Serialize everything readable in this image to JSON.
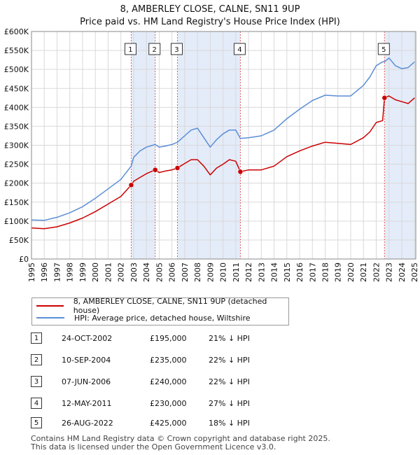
{
  "title": "8, AMBERLEY CLOSE, CALNE, SN11 9UP",
  "subtitle": "Price paid vs. HM Land Registry's House Price Index (HPI)",
  "colors": {
    "property": "#cc0000",
    "hpi": "#5b8ed6",
    "shade": "#e4ecf9",
    "marker_line": "#e06060"
  },
  "legend": {
    "property": "8, AMBERLEY CLOSE, CALNE, SN11 9UP (detached house)",
    "hpi": "HPI: Average price, detached house, Wiltshire"
  },
  "transactions": [
    {
      "num": "1",
      "date": "24-OCT-2002",
      "price": "£195,000",
      "hpi": "21% ↓ HPI"
    },
    {
      "num": "2",
      "date": "10-SEP-2004",
      "price": "£235,000",
      "hpi": "22% ↓ HPI"
    },
    {
      "num": "3",
      "date": "07-JUN-2006",
      "price": "£240,000",
      "hpi": "22% ↓ HPI"
    },
    {
      "num": "4",
      "date": "12-MAY-2011",
      "price": "£230,000",
      "hpi": "27% ↓ HPI"
    },
    {
      "num": "5",
      "date": "26-AUG-2022",
      "price": "£425,000",
      "hpi": "18% ↓ HPI"
    }
  ],
  "footer": {
    "line1": "Contains HM Land Registry data © Crown copyright and database right 2025.",
    "line2": "This data is licensed under the Open Government Licence v3.0."
  },
  "chart_data": {
    "type": "line",
    "xlim": [
      1995,
      2025.1
    ],
    "ylim": [
      0,
      600000
    ],
    "x_ticks": [
      1995,
      1996,
      1997,
      1998,
      1999,
      2000,
      2001,
      2002,
      2003,
      2004,
      2005,
      2006,
      2007,
      2008,
      2009,
      2010,
      2011,
      2012,
      2013,
      2014,
      2015,
      2016,
      2017,
      2018,
      2019,
      2020,
      2021,
      2022,
      2023,
      2024,
      2025
    ],
    "y_ticks": [
      {
        "v": 0,
        "label": "£0"
      },
      {
        "v": 50000,
        "label": "£50K"
      },
      {
        "v": 100000,
        "label": "£100K"
      },
      {
        "v": 150000,
        "label": "£150K"
      },
      {
        "v": 200000,
        "label": "£200K"
      },
      {
        "v": 250000,
        "label": "£250K"
      },
      {
        "v": 300000,
        "label": "£300K"
      },
      {
        "v": 350000,
        "label": "£350K"
      },
      {
        "v": 400000,
        "label": "£400K"
      },
      {
        "v": 450000,
        "label": "£450K"
      },
      {
        "v": 500000,
        "label": "£500K"
      },
      {
        "v": 550000,
        "label": "£550K"
      },
      {
        "v": 600000,
        "label": "£600K"
      }
    ],
    "shaded_periods": [
      [
        2002.81,
        2004.69
      ],
      [
        2006.43,
        2011.36
      ],
      [
        2022.65,
        2025.1
      ]
    ],
    "sale_markers": [
      {
        "num": "1",
        "x": 2002.81,
        "y": 195000
      },
      {
        "num": "2",
        "x": 2004.69,
        "y": 235000
      },
      {
        "num": "3",
        "x": 2006.43,
        "y": 240000
      },
      {
        "num": "4",
        "x": 2011.36,
        "y": 230000
      },
      {
        "num": "5",
        "x": 2022.65,
        "y": 425000
      }
    ],
    "series": [
      {
        "name": "8, AMBERLEY CLOSE, CALNE, SN11 9UP (detached house)",
        "x": [
          1995,
          1996,
          1997,
          1998,
          1999,
          2000,
          2001,
          2002,
          2002.81,
          2003,
          2003.5,
          2004,
          2004.69,
          2005,
          2005.5,
          2006,
          2006.43,
          2007,
          2007.5,
          2008,
          2008.5,
          2009,
          2009.5,
          2010,
          2010.5,
          2011,
          2011.36,
          2012,
          2013,
          2014,
          2015,
          2016,
          2017,
          2018,
          2019,
          2020,
          2021,
          2021.5,
          2022,
          2022.5,
          2022.65,
          2023,
          2023.5,
          2024,
          2024.5,
          2025
        ],
        "values": [
          82000,
          80000,
          85000,
          95000,
          108000,
          125000,
          145000,
          165000,
          195000,
          205000,
          215000,
          225000,
          235000,
          228000,
          232000,
          235000,
          240000,
          252000,
          262000,
          262000,
          245000,
          222000,
          240000,
          250000,
          262000,
          258000,
          230000,
          235000,
          235000,
          245000,
          270000,
          285000,
          298000,
          308000,
          305000,
          302000,
          320000,
          335000,
          360000,
          365000,
          425000,
          430000,
          420000,
          415000,
          410000,
          425000
        ]
      },
      {
        "name": "HPI: Average price, detached house, Wiltshire",
        "x": [
          1995,
          1996,
          1997,
          1998,
          1999,
          2000,
          2001,
          2002,
          2002.81,
          2003,
          2003.5,
          2004,
          2004.69,
          2005,
          2005.5,
          2006,
          2006.43,
          2007,
          2007.5,
          2008,
          2008.5,
          2009,
          2009.5,
          2010,
          2010.5,
          2011,
          2011.36,
          2012,
          2013,
          2014,
          2015,
          2016,
          2017,
          2018,
          2019,
          2020,
          2021,
          2021.5,
          2022,
          2022.5,
          2022.65,
          2023,
          2023.5,
          2024,
          2024.5,
          2025
        ],
        "values": [
          103000,
          102000,
          110000,
          122000,
          138000,
          160000,
          185000,
          210000,
          245000,
          268000,
          285000,
          295000,
          302000,
          295000,
          298000,
          302000,
          308000,
          325000,
          340000,
          345000,
          320000,
          295000,
          315000,
          330000,
          340000,
          340000,
          318000,
          320000,
          325000,
          340000,
          370000,
          395000,
          418000,
          432000,
          430000,
          430000,
          458000,
          480000,
          510000,
          520000,
          520000,
          530000,
          510000,
          502000,
          505000,
          520000
        ]
      }
    ]
  }
}
